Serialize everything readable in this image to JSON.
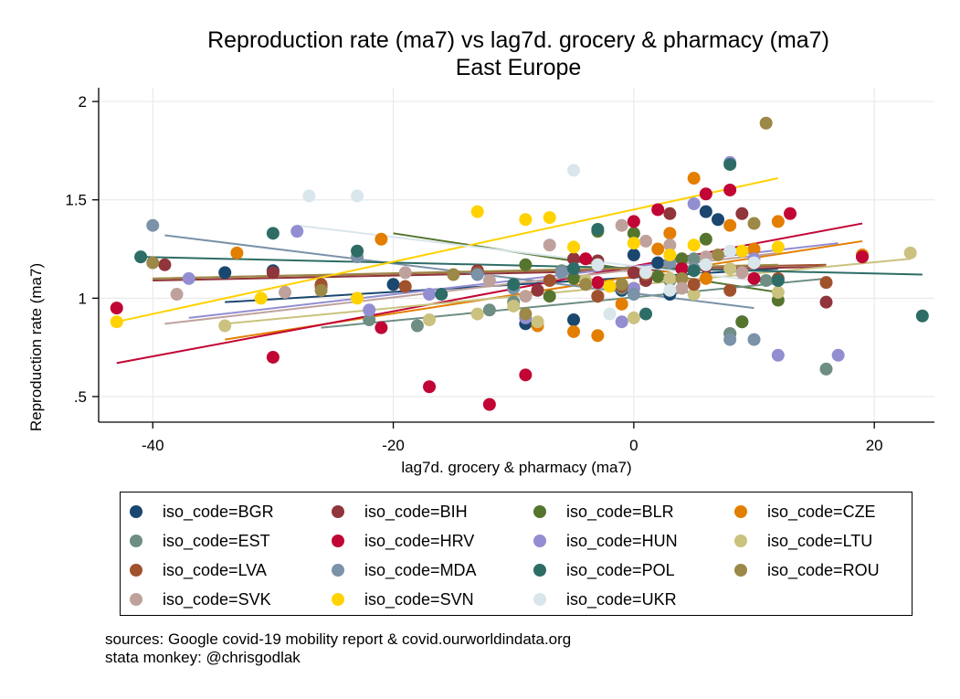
{
  "chart_data": {
    "type": "scatter",
    "title": "Reproduction rate (ma7) vs lag7d. grocery & pharmacy (ma7)",
    "subtitle": "East Europe",
    "xlabel": "lag7d. grocery & pharmacy (ma7)",
    "ylabel": "Reproduction rate (ma7)",
    "xlim": [
      -44.5,
      25
    ],
    "ylim": [
      0.37,
      2.07
    ],
    "x_ticks": [
      -40,
      -20,
      0,
      20
    ],
    "x_tick_labels": [
      "-40",
      "-20",
      "0",
      "20"
    ],
    "y_ticks": [
      0.5,
      1,
      1.5,
      2
    ],
    "y_tick_labels": [
      ".5",
      "1",
      "1.5",
      "2"
    ],
    "grid": true,
    "legend_position": "bottom",
    "series": [
      {
        "name": "iso_code=BGR",
        "color": "#1a476f",
        "points": [
          [
            -34,
            1.13
          ],
          [
            -30,
            1.14
          ],
          [
            -1,
            1.04
          ],
          [
            1,
            1.1
          ],
          [
            3,
            1.02
          ],
          [
            6,
            1.44
          ],
          [
            7,
            1.4
          ],
          [
            9,
            0.88
          ],
          [
            2,
            1.18
          ],
          [
            -9,
            0.87
          ],
          [
            -5,
            0.89
          ],
          [
            4,
            1.15
          ],
          [
            0,
            1.22
          ],
          [
            -20,
            1.07
          ]
        ],
        "fit": [
          [
            -34,
            0.98
          ],
          [
            12,
            1.15
          ]
        ]
      },
      {
        "name": "iso_code=BIH",
        "color": "#90353b",
        "points": [
          [
            -39,
            1.17
          ],
          [
            -30,
            1.13
          ],
          [
            -26,
            1.06
          ],
          [
            -13,
            1.14
          ],
          [
            -8,
            1.04
          ],
          [
            -3,
            1.19
          ],
          [
            1,
            1.09
          ],
          [
            3,
            1.43
          ],
          [
            6,
            1.16
          ],
          [
            9,
            1.43
          ],
          [
            16,
            0.98
          ],
          [
            -3,
            1.01
          ],
          [
            0,
            1.13
          ],
          [
            -5,
            1.2
          ]
        ],
        "fit": [
          [
            -40,
            1.09
          ],
          [
            16,
            1.16
          ]
        ]
      },
      {
        "name": "iso_code=BLR",
        "color": "#55752f",
        "points": [
          [
            -9,
            1.17
          ],
          [
            -5,
            1.1
          ],
          [
            -3,
            1.34
          ],
          [
            0,
            1.33
          ],
          [
            4,
            1.2
          ],
          [
            6,
            1.3
          ],
          [
            8,
            0.82
          ],
          [
            9,
            0.88
          ],
          [
            12,
            0.99
          ],
          [
            -1,
            1.07
          ],
          [
            2,
            1.11
          ],
          [
            -7,
            1.01
          ]
        ],
        "fit": [
          [
            -20,
            1.33
          ],
          [
            12,
            1.03
          ]
        ]
      },
      {
        "name": "iso_code=CZE",
        "color": "#e37e00",
        "points": [
          [
            -33,
            1.23
          ],
          [
            -21,
            1.3
          ],
          [
            -8,
            0.86
          ],
          [
            -5,
            0.83
          ],
          [
            -3,
            0.81
          ],
          [
            -1,
            0.97
          ],
          [
            2,
            1.25
          ],
          [
            3,
            1.33
          ],
          [
            5,
            1.61
          ],
          [
            8,
            1.37
          ],
          [
            10,
            1.25
          ],
          [
            12,
            1.39
          ],
          [
            19,
            1.22
          ],
          [
            0,
            1.05
          ],
          [
            6,
            1.1
          ]
        ],
        "fit": [
          [
            -34,
            0.79
          ],
          [
            19,
            1.29
          ]
        ]
      },
      {
        "name": "iso_code=EST",
        "color": "#6e8e84",
        "points": [
          [
            -22,
            0.89
          ],
          [
            -18,
            0.86
          ],
          [
            -12,
            0.94
          ],
          [
            -6,
            1.14
          ],
          [
            -1,
            1.05
          ],
          [
            3,
            1.09
          ],
          [
            8,
            0.82
          ],
          [
            11,
            1.09
          ],
          [
            16,
            0.64
          ],
          [
            -10,
            0.98
          ],
          [
            5,
            1.2
          ]
        ],
        "fit": [
          [
            -26,
            0.85
          ],
          [
            16,
            1.1
          ]
        ]
      },
      {
        "name": "iso_code=HRV",
        "color": "#c10534",
        "points": [
          [
            -43,
            0.95
          ],
          [
            -30,
            0.7
          ],
          [
            -21,
            0.85
          ],
          [
            -17,
            0.55
          ],
          [
            -12,
            0.46
          ],
          [
            -9,
            0.61
          ],
          [
            -4,
            1.2
          ],
          [
            0,
            1.39
          ],
          [
            2,
            1.45
          ],
          [
            6,
            1.53
          ],
          [
            8,
            1.55
          ],
          [
            13,
            1.43
          ],
          [
            19,
            1.21
          ],
          [
            -3,
            1.08
          ],
          [
            4,
            1.15
          ],
          [
            10,
            1.1
          ]
        ],
        "fit": [
          [
            -43,
            0.67
          ],
          [
            19,
            1.38
          ]
        ]
      },
      {
        "name": "iso_code=HUN",
        "color": "#938dd2",
        "points": [
          [
            -37,
            1.1
          ],
          [
            -28,
            1.34
          ],
          [
            -22,
            0.94
          ],
          [
            -17,
            1.02
          ],
          [
            -9,
            0.9
          ],
          [
            -1,
            0.88
          ],
          [
            3,
            1.1
          ],
          [
            5,
            1.48
          ],
          [
            8,
            1.69
          ],
          [
            10,
            1.2
          ],
          [
            12,
            0.71
          ],
          [
            17,
            0.71
          ],
          [
            0,
            1.05
          ],
          [
            -5,
            1.15
          ]
        ],
        "fit": [
          [
            -37,
            0.9
          ],
          [
            17,
            1.28
          ]
        ]
      },
      {
        "name": "iso_code=LTU",
        "color": "#cac27e",
        "points": [
          [
            -34,
            0.86
          ],
          [
            -17,
            0.89
          ],
          [
            -13,
            0.92
          ],
          [
            -8,
            0.88
          ],
          [
            -4,
            1.09
          ],
          [
            0,
            0.9
          ],
          [
            5,
            1.02
          ],
          [
            8,
            1.15
          ],
          [
            12,
            1.03
          ],
          [
            23,
            1.23
          ],
          [
            -10,
            0.96
          ],
          [
            3,
            1.1
          ]
        ],
        "fit": [
          [
            -34,
            0.87
          ],
          [
            23,
            1.2
          ]
        ]
      },
      {
        "name": "iso_code=LVA",
        "color": "#a0522d",
        "points": [
          [
            -26,
            1.07
          ],
          [
            -19,
            1.06
          ],
          [
            -13,
            1.13
          ],
          [
            -7,
            1.09
          ],
          [
            -3,
            1.01
          ],
          [
            1,
            1.12
          ],
          [
            5,
            1.07
          ],
          [
            8,
            1.04
          ],
          [
            12,
            1.1
          ],
          [
            16,
            1.08
          ],
          [
            -1,
            1.06
          ]
        ],
        "fit": [
          [
            -40,
            1.1
          ],
          [
            16,
            1.17
          ]
        ]
      },
      {
        "name": "iso_code=MDA",
        "color": "#7b92a8",
        "points": [
          [
            -40,
            1.37
          ],
          [
            -23,
            1.21
          ],
          [
            -13,
            1.12
          ],
          [
            -6,
            1.13
          ],
          [
            0,
            1.02
          ],
          [
            5,
            1.15
          ],
          [
            8,
            0.79
          ],
          [
            10,
            0.79
          ],
          [
            3,
            1.18
          ],
          [
            -10,
            1.05
          ]
        ],
        "fit": [
          [
            -39,
            1.32
          ],
          [
            10,
            0.95
          ]
        ]
      },
      {
        "name": "iso_code=POL",
        "color": "#2d6d66",
        "points": [
          [
            -41,
            1.21
          ],
          [
            -30,
            1.33
          ],
          [
            -23,
            1.24
          ],
          [
            -16,
            1.02
          ],
          [
            -10,
            1.07
          ],
          [
            -3,
            1.35
          ],
          [
            1,
            0.92
          ],
          [
            5,
            1.14
          ],
          [
            8,
            1.68
          ],
          [
            12,
            1.09
          ],
          [
            24,
            0.91
          ],
          [
            -5,
            1.15
          ]
        ],
        "fit": [
          [
            -41,
            1.21
          ],
          [
            24,
            1.12
          ]
        ]
      },
      {
        "name": "iso_code=ROU",
        "color": "#9c8847",
        "points": [
          [
            -40,
            1.18
          ],
          [
            -26,
            1.04
          ],
          [
            -9,
            0.92
          ],
          [
            -1,
            1.07
          ],
          [
            4,
            1.1
          ],
          [
            10,
            1.38
          ],
          [
            11,
            1.89
          ],
          [
            -4,
            1.07
          ],
          [
            7,
            1.22
          ],
          [
            -15,
            1.12
          ]
        ],
        "fit": [
          [
            -40,
            1.1
          ],
          [
            12,
            1.17
          ]
        ]
      },
      {
        "name": "iso_code=SVK",
        "color": "#bfa19c",
        "points": [
          [
            -38,
            1.02
          ],
          [
            -29,
            1.03
          ],
          [
            -19,
            1.13
          ],
          [
            -12,
            1.09
          ],
          [
            -7,
            1.27
          ],
          [
            -3,
            1.17
          ],
          [
            1,
            1.29
          ],
          [
            3,
            1.27
          ],
          [
            6,
            1.21
          ],
          [
            9,
            1.13
          ],
          [
            -1,
            1.37
          ],
          [
            4,
            1.05
          ],
          [
            -9,
            1.01
          ]
        ],
        "fit": [
          [
            -39,
            0.87
          ],
          [
            12,
            1.23
          ]
        ]
      },
      {
        "name": "iso_code=SVN",
        "color": "#ffd200",
        "points": [
          [
            -43,
            0.88
          ],
          [
            -31,
            1.0
          ],
          [
            -23,
            1.0
          ],
          [
            -13,
            1.44
          ],
          [
            -9,
            1.4
          ],
          [
            -7,
            1.41
          ],
          [
            -5,
            1.26
          ],
          [
            0,
            1.28
          ],
          [
            3,
            1.22
          ],
          [
            5,
            1.27
          ],
          [
            9,
            1.24
          ],
          [
            12,
            1.26
          ],
          [
            -2,
            1.06
          ]
        ],
        "fit": [
          [
            -43,
            0.88
          ],
          [
            12,
            1.61
          ]
        ]
      },
      {
        "name": "iso_code=UKR",
        "color": "#d9e6eb",
        "points": [
          [
            -27,
            1.52
          ],
          [
            -23,
            1.52
          ],
          [
            -5,
            1.65
          ],
          [
            -2,
            0.92
          ],
          [
            1,
            1.13
          ],
          [
            3,
            1.04
          ],
          [
            6,
            1.17
          ],
          [
            8,
            1.24
          ],
          [
            10,
            1.18
          ],
          [
            -3,
            1.17
          ]
        ],
        "fit": [
          [
            -28,
            1.37
          ],
          [
            10,
            1.09
          ]
        ]
      }
    ],
    "footnotes": [
      "sources: Google covid-19 mobility report & covid.ourworldindata.org",
      "stata monkey: @chrisgodlak"
    ]
  }
}
